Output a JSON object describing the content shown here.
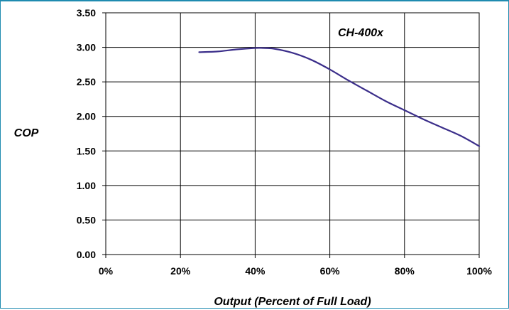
{
  "chart_data": {
    "type": "line",
    "title": "",
    "annotation": "CH-400x",
    "xlabel": "Output (Percent of Full Load)",
    "ylabel": "COP",
    "xlim": [
      0,
      100
    ],
    "ylim": [
      0,
      3.5
    ],
    "x_ticks": [
      0,
      20,
      40,
      60,
      80,
      100
    ],
    "x_tick_labels": [
      "0%",
      "20%",
      "40%",
      "60%",
      "80%",
      "100%"
    ],
    "y_ticks": [
      0,
      0.5,
      1.0,
      1.5,
      2.0,
      2.5,
      3.0,
      3.5
    ],
    "y_tick_labels": [
      "0.00",
      "0.50",
      "1.00",
      "1.50",
      "2.00",
      "2.50",
      "3.00",
      "3.50"
    ],
    "grid": true,
    "series": [
      {
        "color": "#3b2e8a",
        "x": [
          25,
          30,
          35,
          40,
          42,
          45,
          50,
          55,
          60,
          65,
          70,
          75,
          80,
          85,
          90,
          95,
          100
        ],
        "y": [
          2.93,
          2.94,
          2.97,
          2.99,
          2.99,
          2.98,
          2.92,
          2.82,
          2.68,
          2.52,
          2.37,
          2.22,
          2.09,
          1.96,
          1.84,
          1.72,
          1.57
        ]
      }
    ]
  }
}
